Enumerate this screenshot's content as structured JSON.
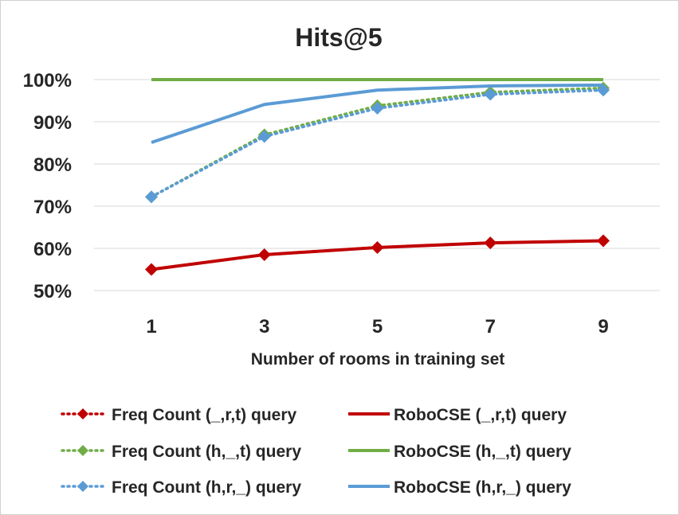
{
  "chart_data": {
    "type": "line",
    "title": "Hits@5",
    "xlabel": "Number of rooms in training set",
    "ylabel": "",
    "categories": [
      "1",
      "3",
      "5",
      "7",
      "9"
    ],
    "ylim": [
      0.5,
      1.0
    ],
    "yticks": [
      0.5,
      0.6,
      0.7,
      0.8,
      0.9,
      1.0
    ],
    "ytick_labels": [
      "50%",
      "60%",
      "70%",
      "80%",
      "90%",
      "100%"
    ],
    "grid": "horizontal",
    "legend_position": "bottom",
    "series": [
      {
        "name": "Freq Count (_,r,t) query",
        "values": [
          0.55,
          0.585,
          0.602,
          0.613,
          0.618
        ],
        "color": "#c00000",
        "style": "dotted",
        "marker": "diamond"
      },
      {
        "name": "RoboCSE (_,r,t) query",
        "values": [
          0.55,
          0.585,
          0.602,
          0.613,
          0.618
        ],
        "color": "#c00000",
        "style": "solid",
        "marker": "none"
      },
      {
        "name": "Freq Count (h,_,t) query",
        "values": [
          0.722,
          0.869,
          0.938,
          0.97,
          0.98
        ],
        "color": "#70ad47",
        "style": "dotted",
        "marker": "diamond"
      },
      {
        "name": "RoboCSE (h,_,t) query",
        "values": [
          1.0,
          1.0,
          1.0,
          1.0,
          1.0
        ],
        "color": "#70ad47",
        "style": "solid",
        "marker": "none"
      },
      {
        "name": "Freq Count (h,r,_) query",
        "values": [
          0.722,
          0.865,
          0.932,
          0.965,
          0.975
        ],
        "color": "#5b9bd5",
        "style": "dotted",
        "marker": "diamond"
      },
      {
        "name": "RoboCSE (h,r,_) query",
        "values": [
          0.851,
          0.941,
          0.975,
          0.985,
          0.987
        ],
        "color": "#5b9bd5",
        "style": "solid",
        "marker": "none"
      }
    ]
  }
}
